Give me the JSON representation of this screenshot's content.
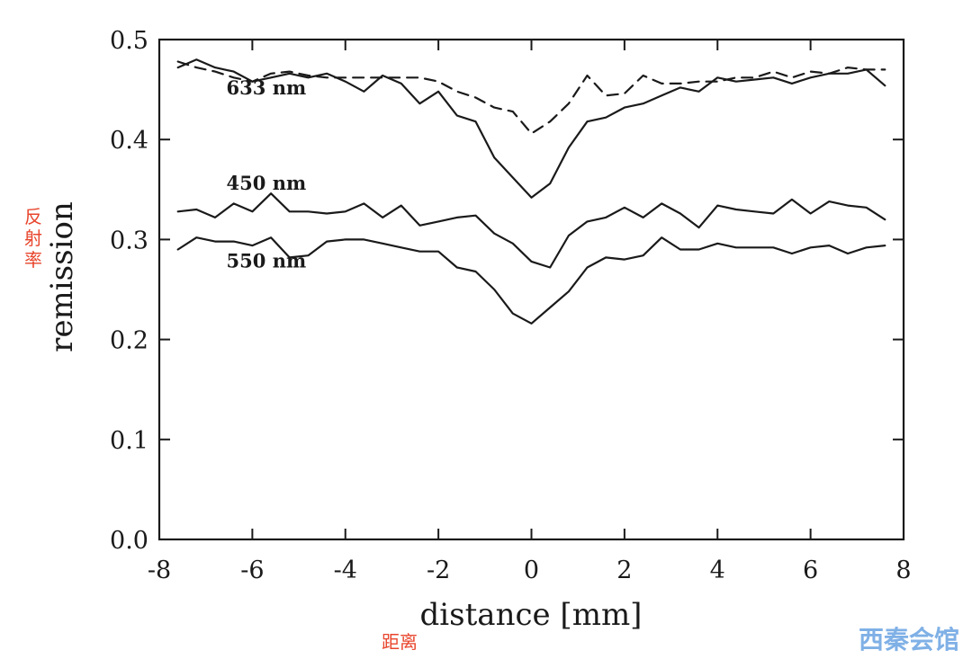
{
  "chart_data": {
    "type": "line",
    "xlabel": "distance [mm]",
    "ylabel": "remission",
    "xlim": [
      -8,
      8
    ],
    "ylim": [
      0.0,
      0.5
    ],
    "xticks": [
      -8,
      -6,
      -4,
      -2,
      0,
      2,
      4,
      6,
      8
    ],
    "xtick_labels": [
      "-8",
      "-6",
      "-4",
      "-2",
      "0",
      "2",
      "4",
      "6",
      "8"
    ],
    "yticks": [
      0.0,
      0.1,
      0.2,
      0.3,
      0.4,
      0.5
    ],
    "ytick_labels": [
      "0.0",
      "0.1",
      "0.2",
      "0.3",
      "0.4",
      "0.5"
    ],
    "grid": false,
    "series": [
      {
        "name": "633 nm",
        "style": "solid",
        "x": [
          -7.6,
          -7.2,
          -6.8,
          -6.4,
          -6.0,
          -5.6,
          -5.2,
          -4.8,
          -4.4,
          -4.0,
          -3.6,
          -3.2,
          -2.8,
          -2.4,
          -2.0,
          -1.6,
          -1.2,
          -0.8,
          -0.4,
          0.0,
          0.4,
          0.8,
          1.2,
          1.6,
          2.0,
          2.4,
          2.8,
          3.2,
          3.6,
          4.0,
          4.4,
          4.8,
          5.2,
          5.6,
          6.0,
          6.4,
          6.8,
          7.2,
          7.6
        ],
        "y": [
          0.472,
          0.48,
          0.472,
          0.468,
          0.458,
          0.462,
          0.466,
          0.462,
          0.466,
          0.458,
          0.448,
          0.464,
          0.456,
          0.436,
          0.448,
          0.424,
          0.418,
          0.382,
          0.362,
          0.342,
          0.356,
          0.392,
          0.418,
          0.422,
          0.432,
          0.436,
          0.444,
          0.452,
          0.448,
          0.462,
          0.458,
          0.46,
          0.462,
          0.456,
          0.462,
          0.466,
          0.466,
          0.47,
          0.454
        ]
      },
      {
        "name": "",
        "style": "dashed",
        "x": [
          -7.6,
          -7.2,
          -6.8,
          -6.4,
          -6.0,
          -5.6,
          -5.2,
          -4.8,
          -4.4,
          -4.0,
          -3.6,
          -3.2,
          -2.8,
          -2.4,
          -2.0,
          -1.6,
          -1.2,
          -0.8,
          -0.4,
          0.0,
          0.4,
          0.8,
          1.2,
          1.6,
          2.0,
          2.4,
          2.8,
          3.2,
          3.6,
          4.0,
          4.4,
          4.8,
          5.2,
          5.6,
          6.0,
          6.4,
          6.8,
          7.2,
          7.6
        ],
        "y": [
          0.478,
          0.472,
          0.468,
          0.462,
          0.458,
          0.466,
          0.468,
          0.464,
          0.462,
          0.462,
          0.462,
          0.462,
          0.462,
          0.462,
          0.458,
          0.448,
          0.442,
          0.432,
          0.428,
          0.406,
          0.418,
          0.436,
          0.464,
          0.444,
          0.446,
          0.464,
          0.456,
          0.456,
          0.458,
          0.458,
          0.462,
          0.462,
          0.468,
          0.462,
          0.468,
          0.466,
          0.472,
          0.47,
          0.47
        ]
      },
      {
        "name": "450 nm",
        "style": "solid",
        "x": [
          -7.6,
          -7.2,
          -6.8,
          -6.4,
          -6.0,
          -5.6,
          -5.2,
          -4.8,
          -4.4,
          -4.0,
          -3.6,
          -3.2,
          -2.8,
          -2.4,
          -2.0,
          -1.6,
          -1.2,
          -0.8,
          -0.4,
          0.0,
          0.4,
          0.8,
          1.2,
          1.6,
          2.0,
          2.4,
          2.8,
          3.2,
          3.6,
          4.0,
          4.4,
          4.8,
          5.2,
          5.6,
          6.0,
          6.4,
          6.8,
          7.2,
          7.6
        ],
        "y": [
          0.328,
          0.33,
          0.322,
          0.336,
          0.328,
          0.346,
          0.328,
          0.328,
          0.326,
          0.328,
          0.336,
          0.322,
          0.334,
          0.314,
          0.318,
          0.322,
          0.324,
          0.306,
          0.296,
          0.278,
          0.272,
          0.304,
          0.318,
          0.322,
          0.332,
          0.322,
          0.336,
          0.326,
          0.312,
          0.334,
          0.33,
          0.328,
          0.326,
          0.34,
          0.326,
          0.338,
          0.334,
          0.332,
          0.32
        ]
      },
      {
        "name": "550 nm",
        "style": "solid",
        "x": [
          -7.6,
          -7.2,
          -6.8,
          -6.4,
          -6.0,
          -5.6,
          -5.2,
          -4.8,
          -4.4,
          -4.0,
          -3.6,
          -3.2,
          -2.8,
          -2.4,
          -2.0,
          -1.6,
          -1.2,
          -0.8,
          -0.4,
          0.0,
          0.4,
          0.8,
          1.2,
          1.6,
          2.0,
          2.4,
          2.8,
          3.2,
          3.6,
          4.0,
          4.4,
          4.8,
          5.2,
          5.6,
          6.0,
          6.4,
          6.8,
          7.2,
          7.6
        ],
        "y": [
          0.29,
          0.302,
          0.298,
          0.298,
          0.294,
          0.302,
          0.282,
          0.284,
          0.298,
          0.3,
          0.3,
          0.296,
          0.292,
          0.288,
          0.288,
          0.272,
          0.268,
          0.25,
          0.226,
          0.216,
          0.232,
          0.248,
          0.272,
          0.282,
          0.28,
          0.284,
          0.302,
          0.29,
          0.29,
          0.296,
          0.292,
          0.292,
          0.292,
          0.286,
          0.292,
          0.294,
          0.286,
          0.292,
          0.294
        ]
      }
    ],
    "series_labels": [
      {
        "text": "633 nm",
        "x": -5.7,
        "y": 0.445
      },
      {
        "text": "450 nm",
        "x": -5.7,
        "y": 0.35
      },
      {
        "text": "550 nm",
        "x": -5.7,
        "y": 0.272
      }
    ]
  },
  "annotations": {
    "ylabel_cn": [
      "反",
      "射",
      "率"
    ],
    "xlabel_cn": "距离",
    "annotation_color": "#e8452c"
  },
  "watermark": {
    "text": "西秦会馆",
    "color": "#7fb0e6"
  },
  "colors": {
    "ink": "#1a1a1a"
  }
}
